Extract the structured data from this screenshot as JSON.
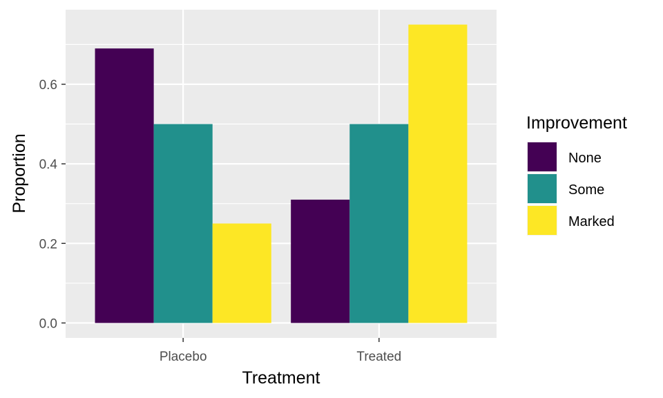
{
  "chart_data": {
    "type": "bar",
    "categories": [
      "Placebo",
      "Treated"
    ],
    "series": [
      {
        "name": "None",
        "color": "#440154",
        "values": [
          0.69,
          0.31
        ]
      },
      {
        "name": "Some",
        "color": "#21908C",
        "values": [
          0.5,
          0.5
        ]
      },
      {
        "name": "Marked",
        "color": "#FDE725",
        "values": [
          0.25,
          0.75
        ]
      }
    ],
    "xlabel": "Treatment",
    "ylabel": "Proportion",
    "ylim": [
      -0.0375,
      0.7875
    ],
    "yticks": [
      0.0,
      0.2,
      0.4,
      0.6
    ],
    "ytick_labels": [
      "0.0",
      "0.2",
      "0.4",
      "0.6"
    ],
    "legend": {
      "title": "Improvement",
      "position": "right"
    },
    "grid": true,
    "panel_background": "#EBEBEB",
    "grid_color": "#FFFFFF"
  }
}
